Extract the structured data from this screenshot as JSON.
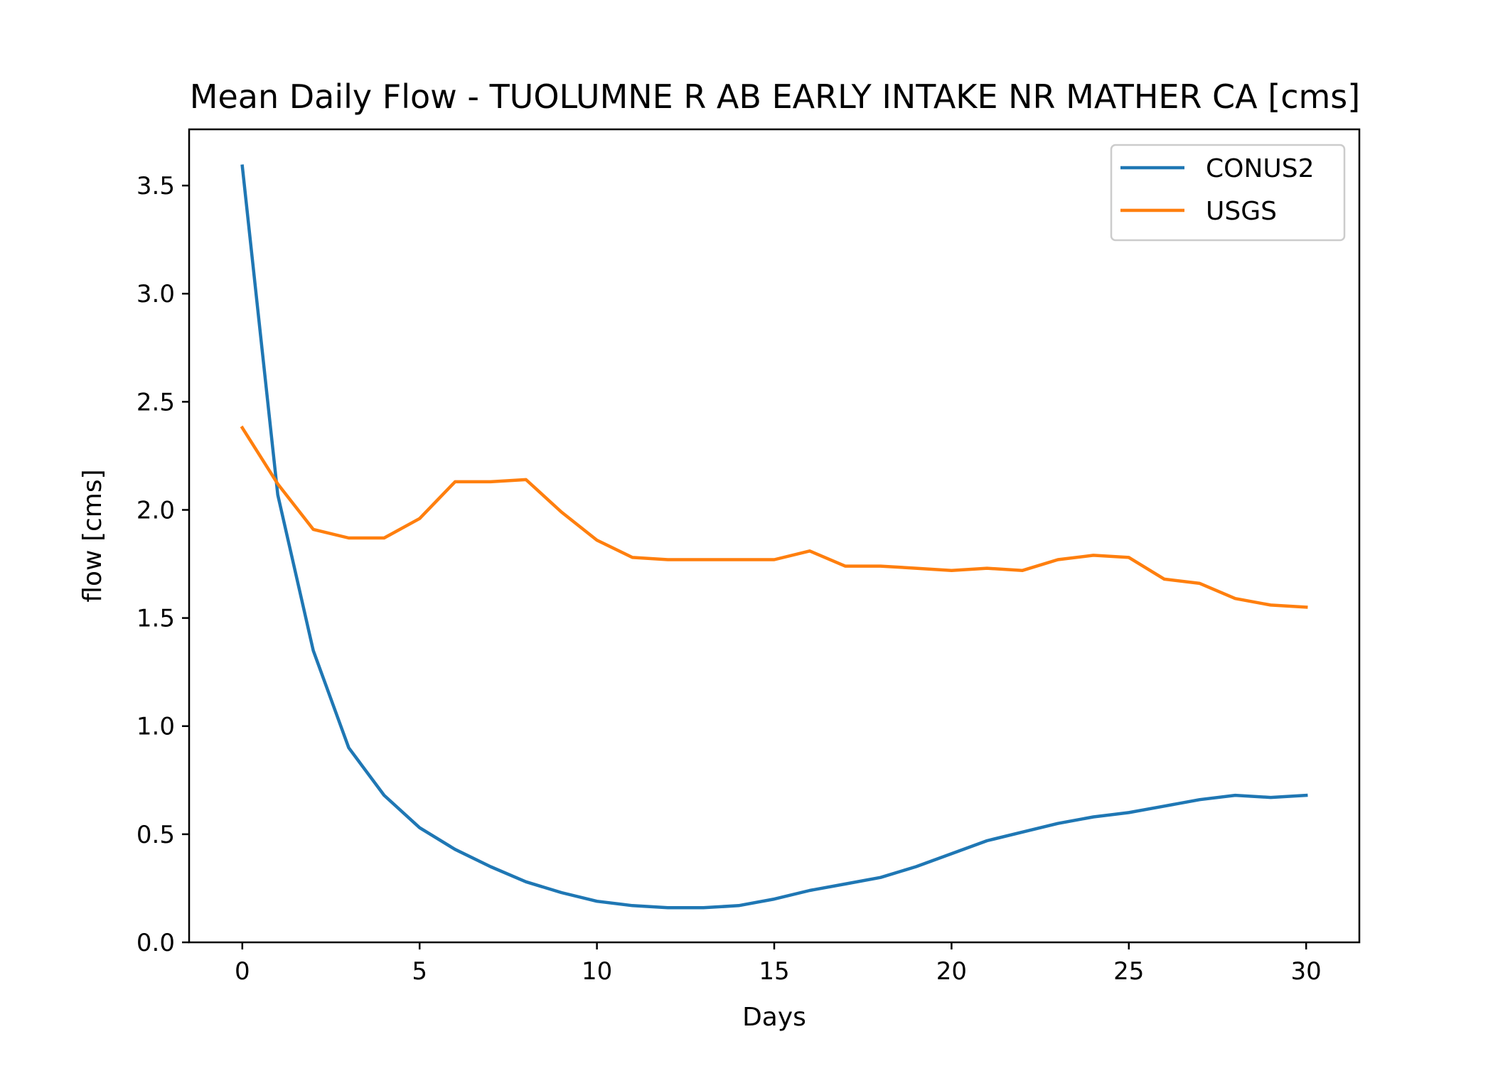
{
  "chart_data": {
    "type": "line",
    "title": "Mean Daily Flow - TUOLUMNE R AB EARLY INTAKE NR MATHER CA [cms]",
    "xlabel": "Days",
    "ylabel": "flow [cms]",
    "xlim": [
      -1.5,
      31.5
    ],
    "ylim": [
      0.0,
      3.76
    ],
    "xticks": [
      0,
      5,
      10,
      15,
      20,
      25,
      30
    ],
    "xtick_labels": [
      "0",
      "5",
      "10",
      "15",
      "20",
      "25",
      "30"
    ],
    "yticks": [
      0.0,
      0.5,
      1.0,
      1.5,
      2.0,
      2.5,
      3.0,
      3.5
    ],
    "ytick_labels": [
      "0.0",
      "0.5",
      "1.0",
      "1.5",
      "2.0",
      "2.5",
      "3.0",
      "3.5"
    ],
    "grid": false,
    "legend": "top-right",
    "x": [
      0,
      1,
      2,
      3,
      4,
      5,
      6,
      7,
      8,
      9,
      10,
      11,
      12,
      13,
      14,
      15,
      16,
      17,
      18,
      19,
      20,
      21,
      22,
      23,
      24,
      25,
      26,
      27,
      28,
      29,
      30
    ],
    "series": [
      {
        "name": "CONUS2",
        "color": "#1f77b4",
        "values": [
          3.59,
          2.07,
          1.35,
          0.9,
          0.68,
          0.53,
          0.43,
          0.35,
          0.28,
          0.23,
          0.19,
          0.17,
          0.16,
          0.16,
          0.17,
          0.2,
          0.24,
          0.27,
          0.3,
          0.35,
          0.41,
          0.47,
          0.51,
          0.55,
          0.58,
          0.6,
          0.63,
          0.66,
          0.68,
          0.67,
          0.68
        ]
      },
      {
        "name": "USGS",
        "color": "#ff7f0e",
        "values": [
          2.38,
          2.12,
          1.91,
          1.87,
          1.87,
          1.96,
          2.13,
          2.13,
          2.14,
          1.99,
          1.86,
          1.78,
          1.77,
          1.77,
          1.77,
          1.77,
          1.81,
          1.74,
          1.74,
          1.73,
          1.72,
          1.73,
          1.72,
          1.77,
          1.79,
          1.78,
          1.68,
          1.66,
          1.59,
          1.56,
          1.55
        ]
      }
    ]
  }
}
